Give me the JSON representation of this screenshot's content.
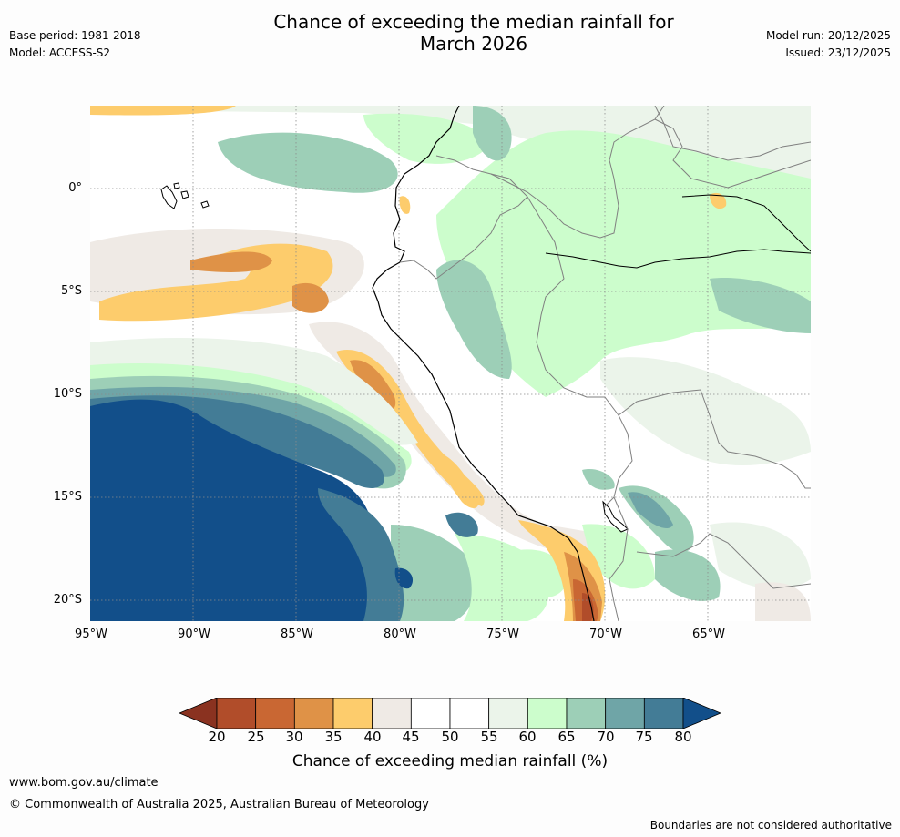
{
  "header": {
    "base_period": "Base period: 1981-2018",
    "model": "Model: ACCESS-S2",
    "model_run": "Model run: 20/12/2025",
    "issued": "Issued: 23/12/2025",
    "title_line1": "Chance of exceeding the median rainfall for",
    "title_line2": "March 2026"
  },
  "map": {
    "lat_labels": [
      "0°",
      "5°S",
      "10°S",
      "15°S",
      "20°S"
    ],
    "lon_labels": [
      "95°W",
      "90°W",
      "85°W",
      "80°W",
      "75°W",
      "70°W",
      "65°W"
    ],
    "colors": {
      "lt20": "#8a3220",
      "c20": "#b14d2a",
      "c25": "#c96733",
      "c30": "#df9247",
      "c35": "#fdcc6c",
      "c40": "#efeae5",
      "c45": "#ffffff",
      "c55": "#ebf4ea",
      "c60": "#ccfdcc",
      "c65": "#9dcfb7",
      "c70": "#6fa5a7",
      "c75": "#437c96",
      "gt80": "#124f8a"
    }
  },
  "colorbar": {
    "ticks": [
      "20",
      "25",
      "30",
      "35",
      "40",
      "45",
      "50",
      "55",
      "60",
      "65",
      "70",
      "75",
      "80"
    ],
    "title": "Chance of exceeding median rainfall (%)",
    "colors": [
      "#b14d2a",
      "#c96733",
      "#df9247",
      "#fdcc6c",
      "#efeae5",
      "#ffffff",
      "#ffffff",
      "#ebf4ea",
      "#ccfdcc",
      "#9dcfb7",
      "#6fa5a7",
      "#437c96"
    ],
    "low_color": "#8a3220",
    "high_color": "#124f8a"
  },
  "footer": {
    "website": "www.bom.gov.au/climate",
    "copyright": "© Commonwealth of Australia 2025, Australian Bureau of Meteorology",
    "disclaimer": "Boundaries are not considered authoritative"
  }
}
